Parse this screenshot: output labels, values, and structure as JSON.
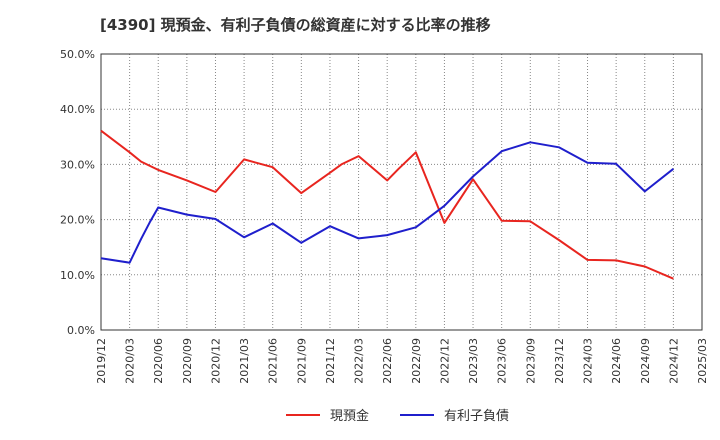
{
  "chart_data": {
    "type": "line",
    "title": "[4390]  現預金、有利子負債の総資産に対する比率の推移",
    "xlabel": "",
    "ylabel": "",
    "ylim": [
      0,
      50
    ],
    "y_ticks": [
      "0.0%",
      "10.0%",
      "20.0%",
      "30.0%",
      "40.0%",
      "50.0%"
    ],
    "y_tick_values": [
      0,
      10,
      20,
      30,
      40,
      50
    ],
    "x_ticks": [
      "2019/12",
      "2020/03",
      "2020/06",
      "2020/09",
      "2020/12",
      "2021/03",
      "2021/06",
      "2021/09",
      "2021/12",
      "2022/03",
      "2022/06",
      "2022/09",
      "2022/12",
      "2023/03",
      "2023/06",
      "2023/09",
      "2023/12",
      "2024/03",
      "2024/06",
      "2024/09",
      "2024/12",
      "2025/03"
    ],
    "series": [
      {
        "name": "現預金",
        "color": "#e8251f",
        "points": [
          {
            "x": 0,
            "y": 36.1
          },
          {
            "x": 1,
            "y": 32.2
          },
          {
            "x": 1.4,
            "y": 30.5
          },
          {
            "x": 2,
            "y": 29.0
          },
          {
            "x": 3,
            "y": 27.1
          },
          {
            "x": 4,
            "y": 25.0
          },
          {
            "x": 5,
            "y": 30.9
          },
          {
            "x": 6,
            "y": 29.5
          },
          {
            "x": 7,
            "y": 24.8
          },
          {
            "x": 8,
            "y": 28.5
          },
          {
            "x": 8.4,
            "y": 30.0
          },
          {
            "x": 9,
            "y": 31.5
          },
          {
            "x": 10,
            "y": 27.1
          },
          {
            "x": 10.4,
            "y": 29.2
          },
          {
            "x": 11,
            "y": 32.2
          },
          {
            "x": 12,
            "y": 19.4
          },
          {
            "x": 13,
            "y": 27.3
          },
          {
            "x": 14,
            "y": 19.8
          },
          {
            "x": 15,
            "y": 19.7
          },
          {
            "x": 16,
            "y": 16.3
          },
          {
            "x": 17,
            "y": 12.7
          },
          {
            "x": 18,
            "y": 12.6
          },
          {
            "x": 19,
            "y": 11.5
          },
          {
            "x": 20,
            "y": 9.3
          }
        ]
      },
      {
        "name": "有利子負債",
        "color": "#1f1fcc",
        "points": [
          {
            "x": 0,
            "y": 13.0
          },
          {
            "x": 1,
            "y": 12.2
          },
          {
            "x": 1.4,
            "y": 16.5
          },
          {
            "x": 1.7,
            "y": 19.5
          },
          {
            "x": 2,
            "y": 22.2
          },
          {
            "x": 3,
            "y": 20.9
          },
          {
            "x": 4,
            "y": 20.1
          },
          {
            "x": 5,
            "y": 16.8
          },
          {
            "x": 6,
            "y": 19.3
          },
          {
            "x": 7,
            "y": 15.8
          },
          {
            "x": 8,
            "y": 18.8
          },
          {
            "x": 9,
            "y": 16.6
          },
          {
            "x": 10,
            "y": 17.2
          },
          {
            "x": 11,
            "y": 18.6
          },
          {
            "x": 12,
            "y": 22.5
          },
          {
            "x": 13,
            "y": 27.8
          },
          {
            "x": 14,
            "y": 32.4
          },
          {
            "x": 15,
            "y": 34.0
          },
          {
            "x": 16,
            "y": 33.1
          },
          {
            "x": 17,
            "y": 30.3
          },
          {
            "x": 18,
            "y": 30.1
          },
          {
            "x": 19,
            "y": 25.1
          },
          {
            "x": 20,
            "y": 29.2
          }
        ]
      }
    ],
    "grid": true,
    "legend": "bottom-center"
  }
}
